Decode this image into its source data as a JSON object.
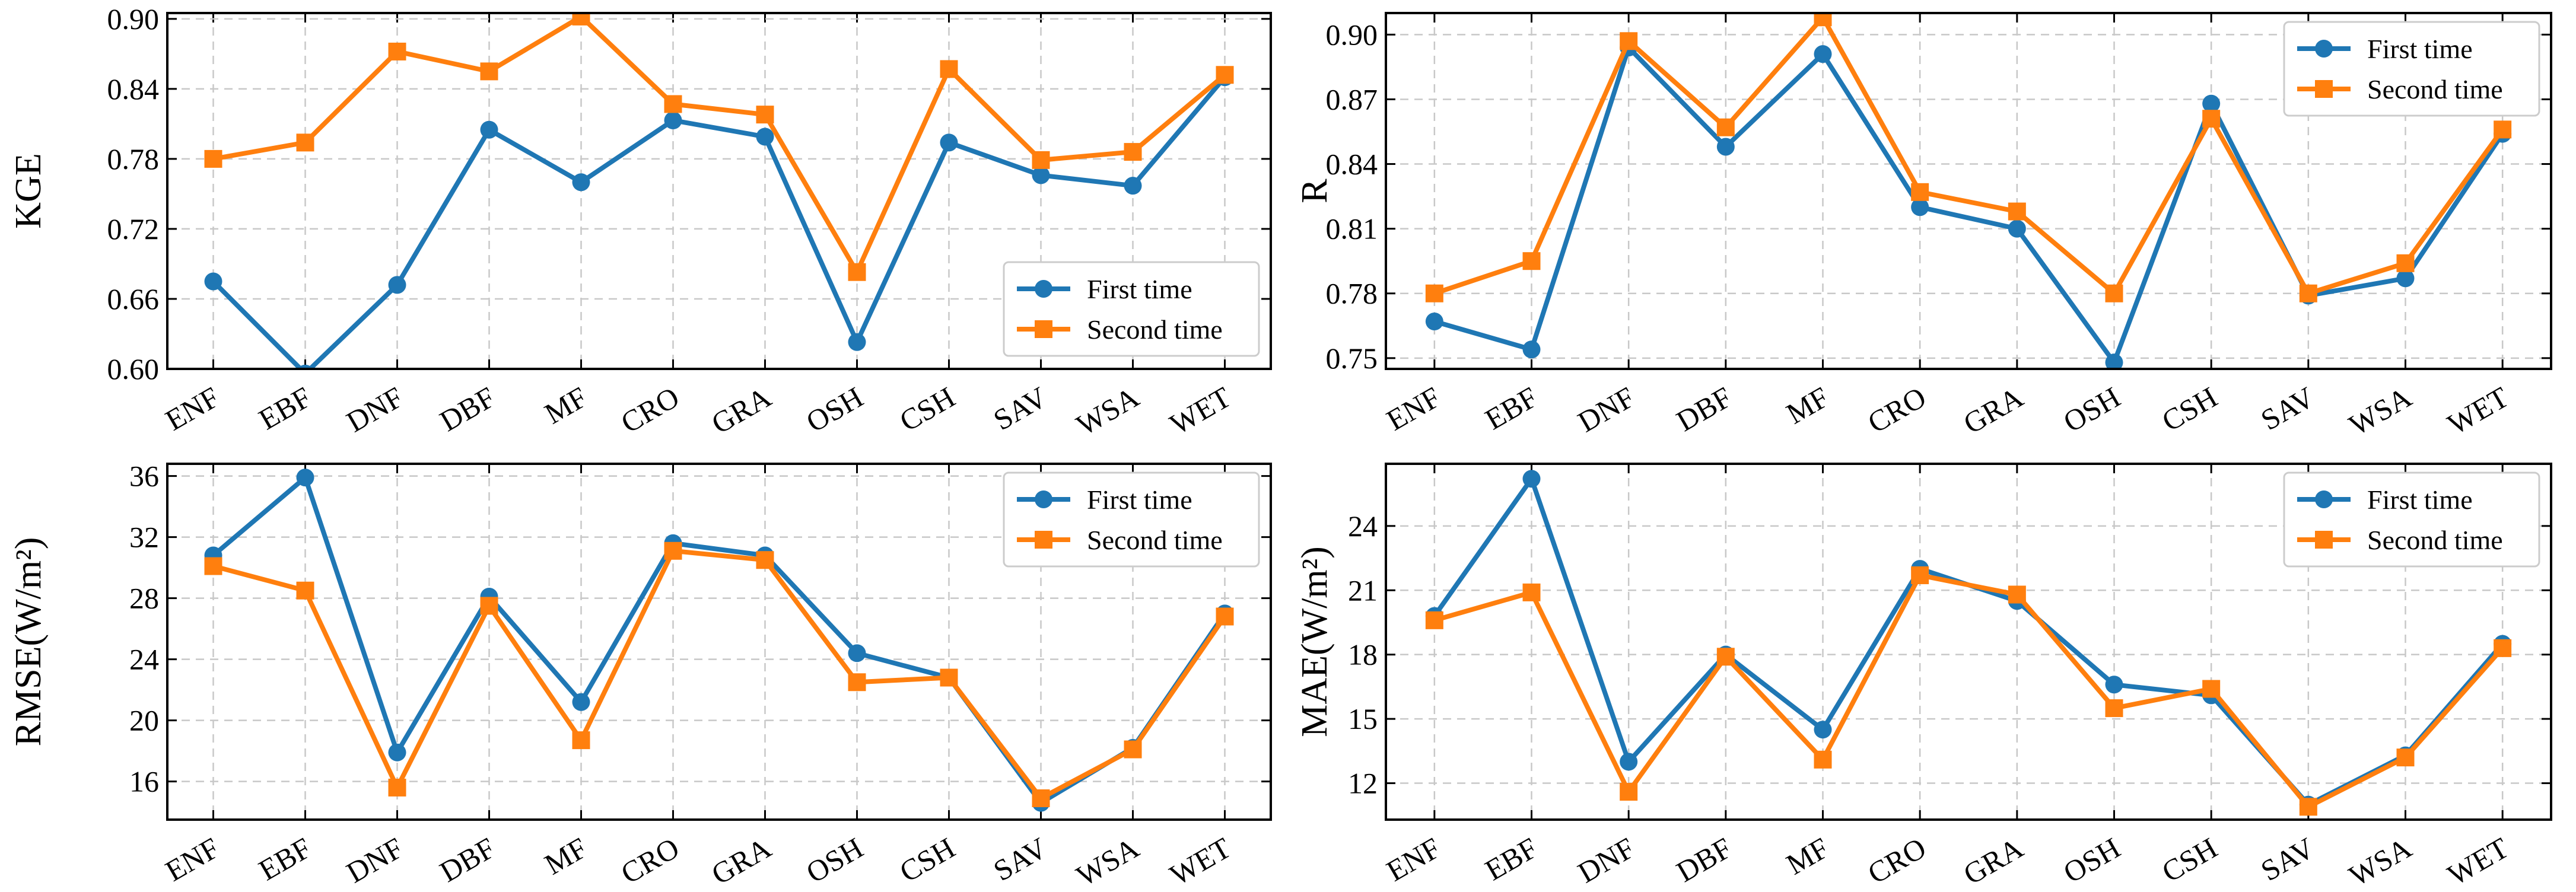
{
  "categories": [
    "ENF",
    "EBF",
    "DNF",
    "DBF",
    "MF",
    "CRO",
    "GRA",
    "OSH",
    "CSH",
    "SAV",
    "WSA",
    "WET"
  ],
  "colors": {
    "first": "#1f77b4",
    "second": "#ff7f0e"
  },
  "chart_data": [
    {
      "type": "line",
      "ylabel": "KGE",
      "ylim": [
        0.6,
        0.905
      ],
      "yticks": [
        "0.60",
        "0.66",
        "0.72",
        "0.78",
        "0.84",
        "0.90"
      ],
      "legend": "bottom-right",
      "grid": true,
      "series": [
        {
          "name": "First time",
          "marker": "circle",
          "values": [
            0.675,
            0.596,
            0.672,
            0.805,
            0.76,
            0.813,
            0.799,
            0.623,
            0.794,
            0.766,
            0.757,
            0.85
          ]
        },
        {
          "name": "Second time",
          "marker": "square",
          "values": [
            0.78,
            0.794,
            0.872,
            0.855,
            0.902,
            0.827,
            0.818,
            0.683,
            0.857,
            0.779,
            0.786,
            0.852
          ]
        }
      ]
    },
    {
      "type": "line",
      "ylabel": "R",
      "ylim": [
        0.745,
        0.91
      ],
      "yticks": [
        "0.75",
        "0.78",
        "0.81",
        "0.84",
        "0.87",
        "0.90"
      ],
      "legend": "top-right",
      "grid": true,
      "series": [
        {
          "name": "First time",
          "marker": "circle",
          "values": [
            0.767,
            0.754,
            0.894,
            0.848,
            0.891,
            0.82,
            0.81,
            0.748,
            0.868,
            0.779,
            0.787,
            0.854
          ]
        },
        {
          "name": "Second time",
          "marker": "square",
          "values": [
            0.78,
            0.795,
            0.897,
            0.857,
            0.908,
            0.827,
            0.818,
            0.78,
            0.861,
            0.78,
            0.794,
            0.856
          ]
        }
      ]
    },
    {
      "type": "line",
      "ylabel": "RMSE(W/m²)",
      "ylim": [
        13.5,
        36.8
      ],
      "yticks": [
        "16",
        "20",
        "24",
        "28",
        "32",
        "36"
      ],
      "legend": "top-right",
      "grid": true,
      "series": [
        {
          "name": "First time",
          "marker": "circle",
          "values": [
            30.8,
            35.9,
            17.9,
            28.1,
            21.2,
            31.6,
            30.8,
            24.4,
            22.8,
            14.6,
            18.2,
            27.0
          ]
        },
        {
          "name": "Second time",
          "marker": "square",
          "values": [
            30.1,
            28.5,
            15.6,
            27.5,
            18.7,
            31.1,
            30.5,
            22.5,
            22.8,
            14.9,
            18.1,
            26.8
          ]
        }
      ]
    },
    {
      "type": "line",
      "ylabel": "MAE(W/m²)",
      "ylim": [
        10.3,
        26.9
      ],
      "yticks": [
        "12",
        "15",
        "18",
        "21",
        "24"
      ],
      "legend": "top-right",
      "grid": true,
      "series": [
        {
          "name": "First time",
          "marker": "circle",
          "values": [
            19.8,
            26.2,
            13.0,
            18.0,
            14.5,
            22.0,
            20.5,
            16.6,
            16.1,
            11.0,
            13.3,
            18.5
          ]
        },
        {
          "name": "Second time",
          "marker": "square",
          "values": [
            19.6,
            20.9,
            11.6,
            17.9,
            13.1,
            21.7,
            20.8,
            15.5,
            16.4,
            10.9,
            13.2,
            18.3
          ]
        }
      ]
    }
  ]
}
